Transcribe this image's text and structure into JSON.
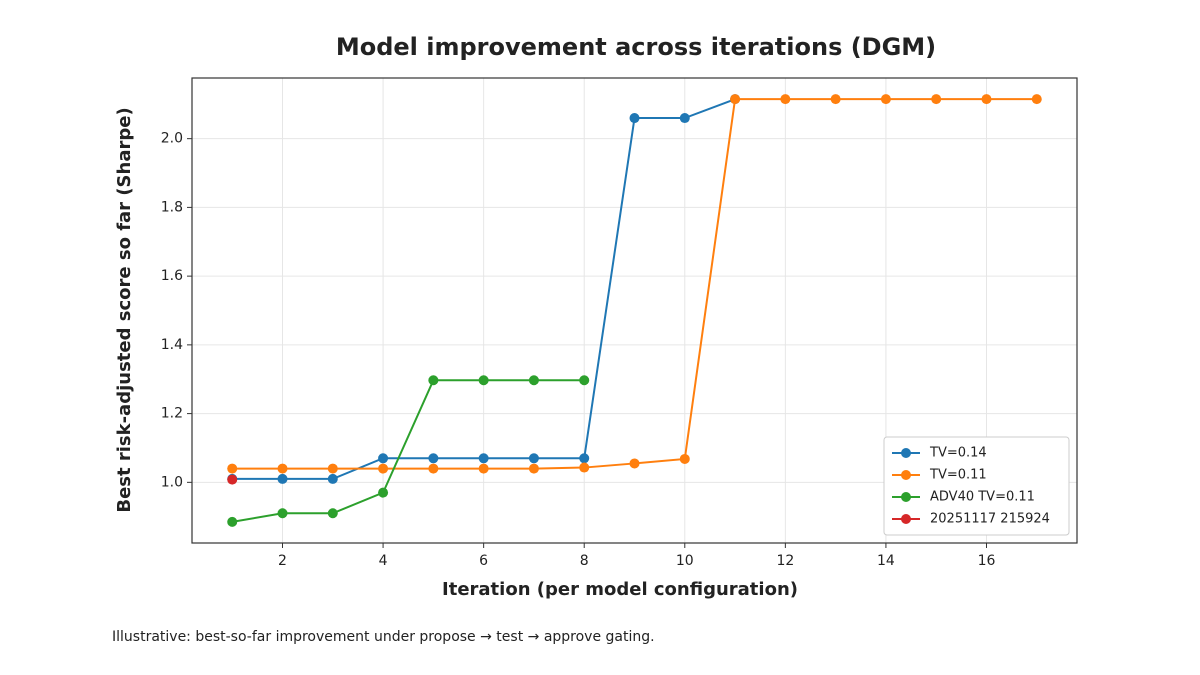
{
  "chart_data": {
    "type": "line",
    "title": "Model improvement across iterations (DGM)",
    "xlabel": "Iteration (per model configuration)",
    "ylabel": "Best risk-adjusted score so far (Sharpe)",
    "caption": "Illustrative: best-so-far improvement under propose → test → approve gating.",
    "xlim": [
      0.2,
      17.8
    ],
    "ylim": [
      0.8235,
      2.1765
    ],
    "xticks": [
      2,
      4,
      6,
      8,
      10,
      12,
      14,
      16
    ],
    "yticks": [
      {
        "value": 1,
        "label": "1.0"
      },
      {
        "value": 1.2,
        "label": "1.2"
      },
      {
        "value": 1.4,
        "label": "1.4"
      },
      {
        "value": 1.6,
        "label": "1.6"
      },
      {
        "value": 1.8,
        "label": "1.8"
      },
      {
        "value": 2,
        "label": "2.0"
      }
    ],
    "grid": true,
    "legend": "lower right",
    "series": [
      {
        "name": "TV=0.14",
        "color": "#1f77b4",
        "x": [
          1,
          2,
          3,
          4,
          5,
          6,
          7,
          8,
          9,
          10,
          11
        ],
        "values": [
          1.01,
          1.01,
          1.01,
          1.07,
          1.07,
          1.07,
          1.07,
          1.07,
          2.06,
          2.06,
          2.115
        ]
      },
      {
        "name": "TV=0.11",
        "color": "#ff7f0e",
        "x": [
          1,
          2,
          3,
          4,
          5,
          6,
          7,
          8,
          9,
          10,
          11,
          12,
          13,
          14,
          15,
          16,
          17
        ],
        "values": [
          1.04,
          1.04,
          1.04,
          1.04,
          1.04,
          1.04,
          1.04,
          1.043,
          1.055,
          1.068,
          2.115,
          2.115,
          2.115,
          2.115,
          2.115,
          2.115,
          2.115
        ]
      },
      {
        "name": "ADV40 TV=0.11",
        "color": "#2ca02c",
        "x": [
          1,
          2,
          3,
          4,
          5,
          6,
          7,
          8
        ],
        "values": [
          0.885,
          0.91,
          0.91,
          0.97,
          1.297,
          1.297,
          1.297,
          1.297
        ]
      },
      {
        "name": "20251117 215924",
        "color": "#d62728",
        "x": [
          1
        ],
        "values": [
          1.008
        ]
      }
    ]
  }
}
